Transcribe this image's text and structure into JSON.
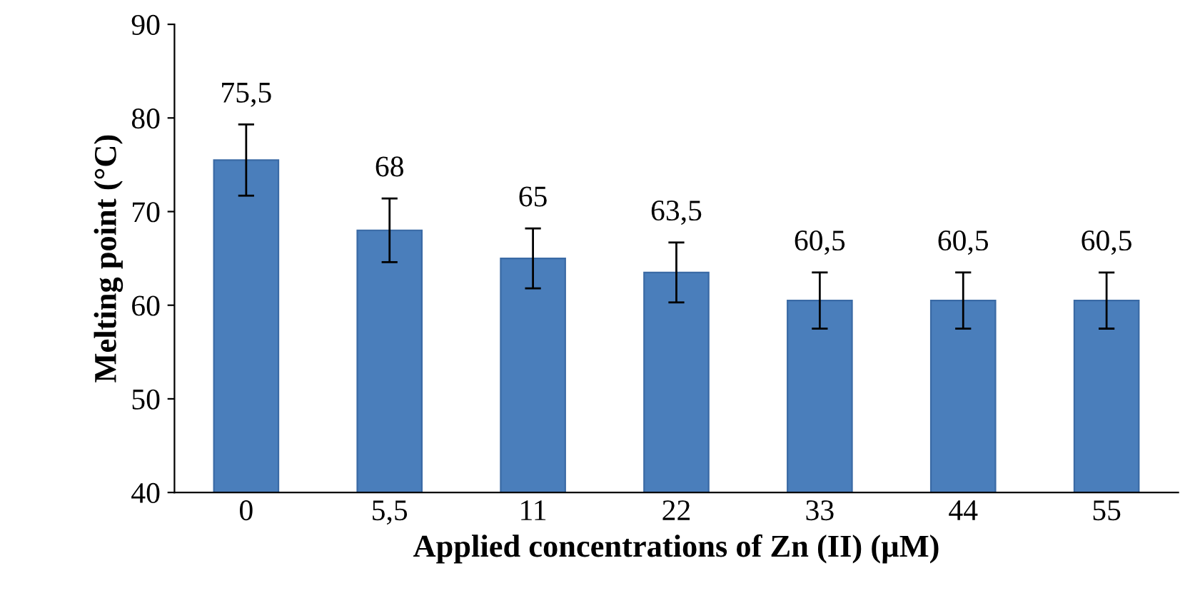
{
  "chart_data": {
    "type": "bar",
    "xlabel": "Applied concentrations of Zn (II) (µM)",
    "ylabel": "Melting point (°C)",
    "categories": [
      "0",
      "5,5",
      "11",
      "22",
      "33",
      "44",
      "55"
    ],
    "values": [
      75.5,
      68,
      65,
      63.5,
      60.5,
      60.5,
      60.5
    ],
    "value_labels": [
      "75,5",
      "68",
      "65",
      "63,5",
      "60,5",
      "60,5",
      "60,5"
    ],
    "errors": [
      3.8,
      3.4,
      3.2,
      3.2,
      3,
      3,
      3
    ],
    "color": "#4a7ebb",
    "ylim": [
      40,
      90
    ],
    "yticks": [
      40,
      50,
      60,
      70,
      80,
      90
    ],
    "grid": false,
    "legend": false
  }
}
